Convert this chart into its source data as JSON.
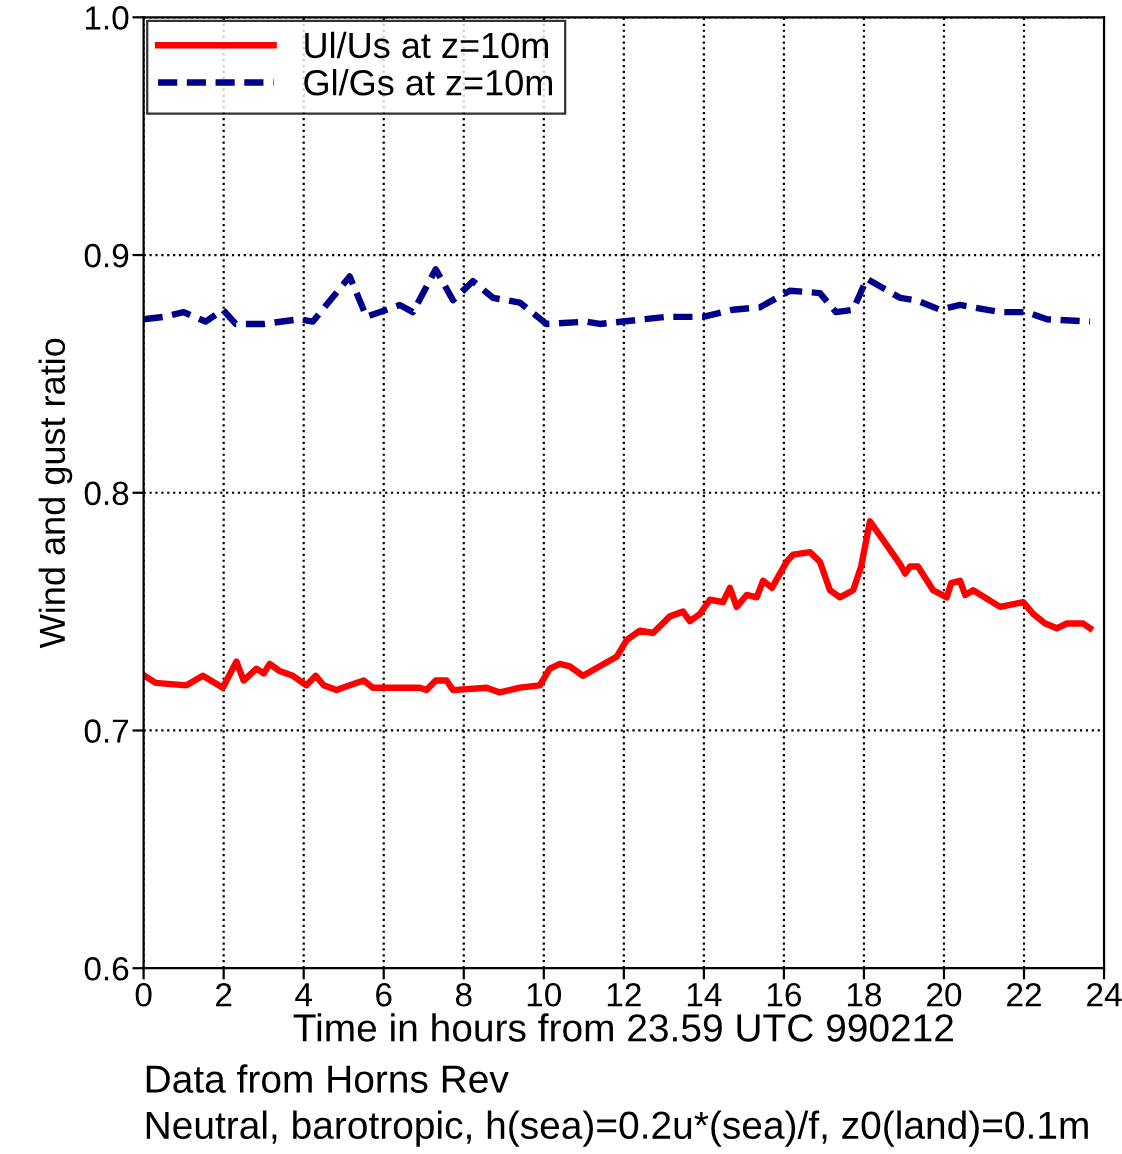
{
  "chart_data": {
    "type": "line",
    "xlabel": "Time in hours from 23.59 UTC 990212",
    "ylabel": "Wind and gust ratio",
    "annotations": [
      "Data from Horns Rev",
      "Neutral, barotropic, h(sea)=0.2u*(sea)/f, z0(land)=0.1m"
    ],
    "xlim": [
      0,
      24
    ],
    "xticks": [
      0,
      2,
      4,
      6,
      8,
      10,
      12,
      14,
      16,
      18,
      20,
      22,
      24
    ],
    "ylim": [
      0.6,
      1.0
    ],
    "yticks": [
      0.6,
      0.7,
      0.8,
      0.9,
      {
        "value": 1.0,
        "label": "1.0"
      }
    ],
    "grid": true,
    "legend": "top left",
    "marker": "none",
    "series": [
      {
        "name": "Ul/Us at z=10m",
        "color": "#ff0000",
        "line_style": "solid",
        "x": [
          0.03,
          0.3,
          1.07,
          1.48,
          1.98,
          2.32,
          2.5,
          2.82,
          3.0,
          3.15,
          3.4,
          3.73,
          4.07,
          4.3,
          4.5,
          4.82,
          5.15,
          5.5,
          5.73,
          6.07,
          6.9,
          7.07,
          7.3,
          7.57,
          7.73,
          8.57,
          8.9,
          9.4,
          9.9,
          10.15,
          10.4,
          10.65,
          10.98,
          11.4,
          11.82,
          12.07,
          12.4,
          12.73,
          13.15,
          13.48,
          13.65,
          13.9,
          14.15,
          14.48,
          14.65,
          14.82,
          15.07,
          15.32,
          15.48,
          15.7,
          16.07,
          16.23,
          16.65,
          16.9,
          17.15,
          17.4,
          17.73,
          17.93,
          18.15,
          18.57,
          18.9,
          19.03,
          19.15,
          19.35,
          19.73,
          20.07,
          20.18,
          20.4,
          20.53,
          20.73,
          21.4,
          21.98,
          22.23,
          22.53,
          22.82,
          23.07,
          23.48,
          23.65
        ],
        "values": [
          0.723,
          0.72,
          0.719,
          0.723,
          0.718,
          0.729,
          0.721,
          0.726,
          0.724,
          0.728,
          0.725,
          0.723,
          0.719,
          0.723,
          0.719,
          0.717,
          0.719,
          0.721,
          0.718,
          0.718,
          0.718,
          0.717,
          0.721,
          0.721,
          0.717,
          0.718,
          0.716,
          0.718,
          0.719,
          0.726,
          0.728,
          0.727,
          0.723,
          0.727,
          0.731,
          0.738,
          0.742,
          0.741,
          0.748,
          0.75,
          0.746,
          0.749,
          0.755,
          0.754,
          0.76,
          0.752,
          0.757,
          0.756,
          0.763,
          0.76,
          0.771,
          0.774,
          0.775,
          0.771,
          0.759,
          0.756,
          0.759,
          0.769,
          0.788,
          0.778,
          0.77,
          0.766,
          0.769,
          0.769,
          0.759,
          0.756,
          0.762,
          0.763,
          0.757,
          0.759,
          0.752,
          0.754,
          0.749,
          0.745,
          0.743,
          0.745,
          0.745,
          0.743
        ]
      },
      {
        "name": "Gl/Gs at z=10m",
        "color": "#00008b",
        "line_style": "dashed",
        "x": [
          0.0,
          0.5,
          1.0,
          1.55,
          1.98,
          2.3,
          3.0,
          3.9,
          4.23,
          5.15,
          5.57,
          6.4,
          6.73,
          7.3,
          7.73,
          8.23,
          8.73,
          9.4,
          10.07,
          11.07,
          11.4,
          13.07,
          13.98,
          14.73,
          15.4,
          16.15,
          16.9,
          17.3,
          17.73,
          18.07,
          18.9,
          19.3,
          19.9,
          20.4,
          21.4,
          22.07,
          22.57,
          23.65
        ],
        "values": [
          0.873,
          0.874,
          0.876,
          0.872,
          0.877,
          0.871,
          0.871,
          0.873,
          0.872,
          0.891,
          0.874,
          0.879,
          0.876,
          0.894,
          0.881,
          0.889,
          0.882,
          0.88,
          0.871,
          0.872,
          0.871,
          0.874,
          0.874,
          0.877,
          0.878,
          0.885,
          0.884,
          0.876,
          0.877,
          0.89,
          0.882,
          0.881,
          0.877,
          0.879,
          0.876,
          0.876,
          0.873,
          0.872
        ]
      }
    ]
  }
}
